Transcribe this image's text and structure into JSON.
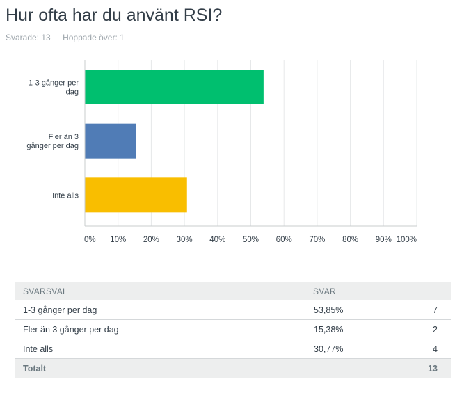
{
  "question": {
    "title": "Hur ofta har du använt RSI?",
    "answered_label": "Svarade: 13",
    "skipped_label": "Hoppade över: 1"
  },
  "chart_data": {
    "type": "bar",
    "orientation": "horizontal",
    "categories": [
      [
        "1-3 gånger per",
        "dag"
      ],
      [
        "Fler än 3",
        "gånger per dag"
      ],
      [
        "Inte alls"
      ]
    ],
    "values": [
      53.85,
      15.38,
      30.77
    ],
    "colors": [
      "#00bf6f",
      "#507cb6",
      "#f9be00"
    ],
    "xlim": [
      0,
      100
    ],
    "ticks": [
      "0%",
      "10%",
      "20%",
      "30%",
      "40%",
      "50%",
      "60%",
      "70%",
      "80%",
      "90%",
      "100%"
    ],
    "grid": true
  },
  "table": {
    "headers": {
      "choice": "SVARSVAL",
      "responses": "SVAR",
      "count": ""
    },
    "rows": [
      {
        "choice": "1-3 gånger per dag",
        "percent": "53,85%",
        "count": "7"
      },
      {
        "choice": "Fler än 3 gånger per dag",
        "percent": "15,38%",
        "count": "2"
      },
      {
        "choice": "Inte alls",
        "percent": "30,77%",
        "count": "4"
      }
    ],
    "total": {
      "label": "Totalt",
      "count": "13"
    }
  }
}
